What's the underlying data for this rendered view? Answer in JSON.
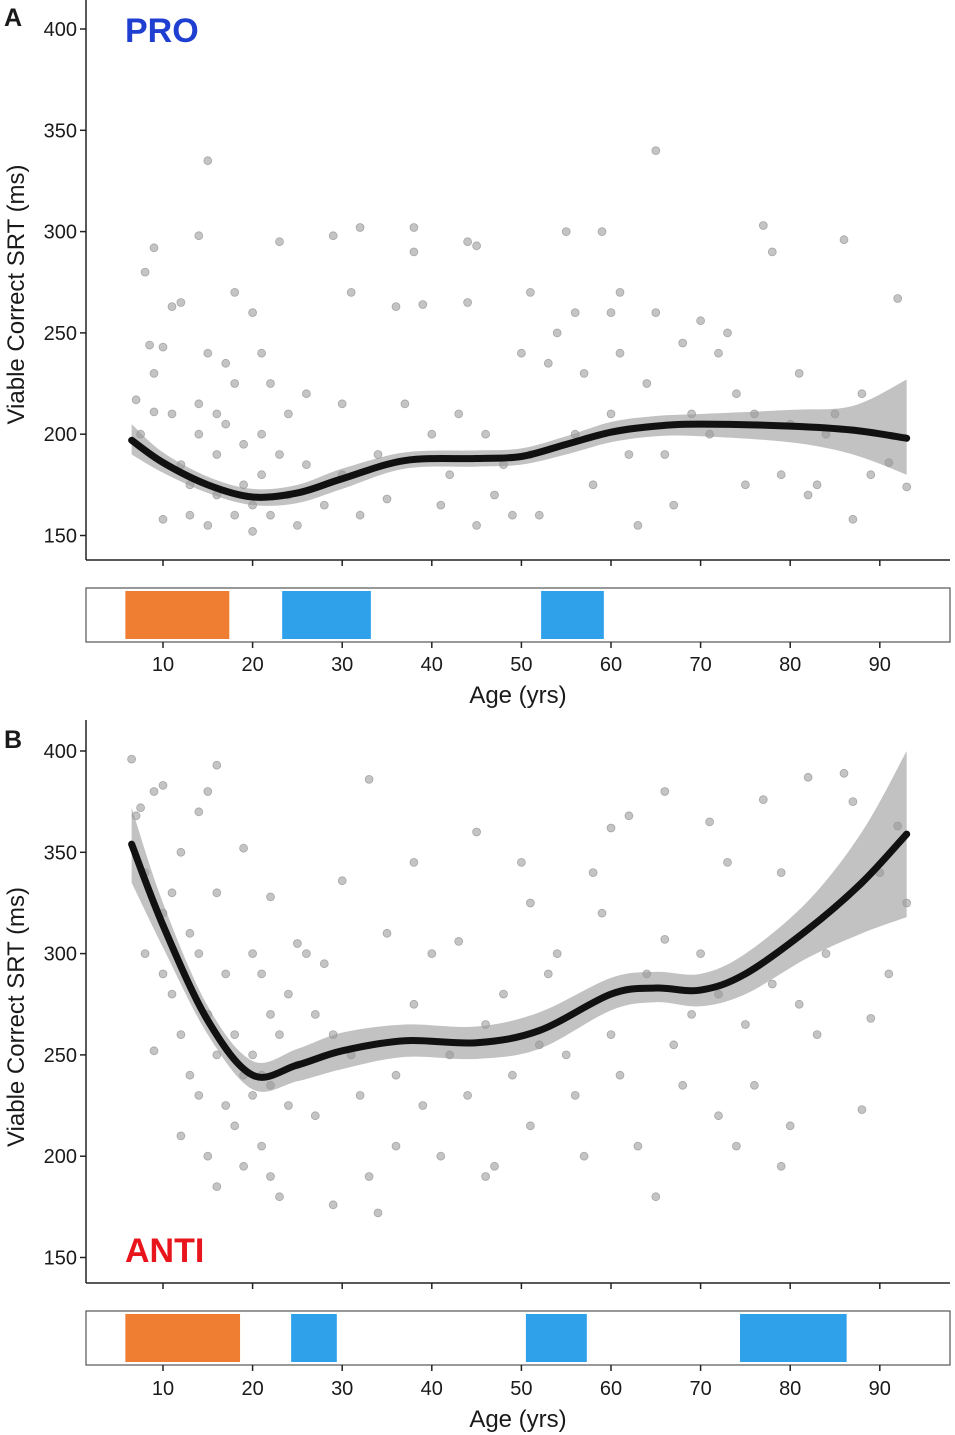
{
  "chart_data": [
    {
      "panel_label": "A",
      "type": "scatter",
      "title": "PRO",
      "title_color": "#1f3fd1",
      "xlabel": "Age (yrs)",
      "ylabel": "Viable Correct SRT (ms)",
      "xlim": [
        0,
        95
      ],
      "ylim": [
        140,
        405
      ],
      "xticks": [
        10,
        20,
        30,
        40,
        50,
        60,
        70,
        80,
        90
      ],
      "yticks": [
        150,
        200,
        250,
        300,
        350,
        400
      ],
      "grid": false,
      "points": [
        [
          7,
          217
        ],
        [
          7.5,
          200
        ],
        [
          8,
          280
        ],
        [
          8.5,
          244
        ],
        [
          9,
          292
        ],
        [
          9,
          230
        ],
        [
          9,
          211
        ],
        [
          10,
          243
        ],
        [
          10,
          158
        ],
        [
          11,
          263
        ],
        [
          11,
          210
        ],
        [
          12,
          265
        ],
        [
          12,
          185
        ],
        [
          13,
          175
        ],
        [
          13,
          160
        ],
        [
          14,
          215
        ],
        [
          14,
          200
        ],
        [
          14,
          298
        ],
        [
          15,
          335
        ],
        [
          15,
          155
        ],
        [
          15,
          240
        ],
        [
          16,
          210
        ],
        [
          16,
          190
        ],
        [
          16,
          170
        ],
        [
          17,
          235
        ],
        [
          17,
          205
        ],
        [
          18,
          270
        ],
        [
          18,
          160
        ],
        [
          18,
          225
        ],
        [
          19,
          195
        ],
        [
          19,
          175
        ],
        [
          20,
          260
        ],
        [
          20,
          165
        ],
        [
          20,
          152
        ],
        [
          21,
          240
        ],
        [
          21,
          200
        ],
        [
          21,
          180
        ],
        [
          22,
          225
        ],
        [
          22,
          160
        ],
        [
          23,
          295
        ],
        [
          23,
          190
        ],
        [
          24,
          210
        ],
        [
          24,
          170
        ],
        [
          25,
          155
        ],
        [
          26,
          220
        ],
        [
          26,
          185
        ],
        [
          28,
          165
        ],
        [
          29,
          298
        ],
        [
          30,
          215
        ],
        [
          30,
          180
        ],
        [
          31,
          270
        ],
        [
          32,
          302
        ],
        [
          32,
          160
        ],
        [
          34,
          190
        ],
        [
          35,
          168
        ],
        [
          36,
          263
        ],
        [
          37,
          215
        ],
        [
          38,
          290
        ],
        [
          38,
          302
        ],
        [
          39,
          264
        ],
        [
          40,
          200
        ],
        [
          41,
          165
        ],
        [
          42,
          180
        ],
        [
          43,
          210
        ],
        [
          44,
          295
        ],
        [
          44,
          265
        ],
        [
          45,
          155
        ],
        [
          45,
          293
        ],
        [
          46,
          200
        ],
        [
          47,
          170
        ],
        [
          48,
          185
        ],
        [
          49,
          160
        ],
        [
          50,
          240
        ],
        [
          51,
          270
        ],
        [
          51,
          190
        ],
        [
          52,
          160
        ],
        [
          53,
          235
        ],
        [
          54,
          250
        ],
        [
          55,
          300
        ],
        [
          56,
          200
        ],
        [
          56,
          260
        ],
        [
          57,
          230
        ],
        [
          58,
          175
        ],
        [
          59,
          300
        ],
        [
          60,
          210
        ],
        [
          60,
          260
        ],
        [
          61,
          240
        ],
        [
          61,
          270
        ],
        [
          62,
          190
        ],
        [
          63,
          155
        ],
        [
          64,
          225
        ],
        [
          65,
          260
        ],
        [
          65,
          340
        ],
        [
          66,
          190
        ],
        [
          67,
          165
        ],
        [
          68,
          245
        ],
        [
          69,
          210
        ],
        [
          70,
          256
        ],
        [
          71,
          200
        ],
        [
          72,
          240
        ],
        [
          73,
          250
        ],
        [
          74,
          220
        ],
        [
          75,
          175
        ],
        [
          76,
          210
        ],
        [
          77,
          303
        ],
        [
          78,
          290
        ],
        [
          79,
          180
        ],
        [
          80,
          205
        ],
        [
          81,
          230
        ],
        [
          82,
          170
        ],
        [
          83,
          175
        ],
        [
          84,
          200
        ],
        [
          85,
          210
        ],
        [
          86,
          296
        ],
        [
          87,
          158
        ],
        [
          88,
          220
        ],
        [
          89,
          180
        ],
        [
          91,
          186
        ],
        [
          92,
          267
        ],
        [
          93,
          174
        ]
      ],
      "smooth_fit": {
        "x": [
          6.5,
          10,
          15,
          20,
          25,
          30,
          37,
          45,
          50,
          55,
          60,
          65,
          70,
          80,
          87,
          93
        ],
        "y": [
          197,
          186,
          175,
          169,
          171,
          178,
          187,
          188,
          189,
          195,
          201,
          204,
          205,
          204,
          202,
          198
        ],
        "lower": [
          190,
          181,
          171,
          165,
          166,
          173,
          183,
          184,
          185,
          190,
          196,
          199,
          199,
          196,
          190,
          180
        ],
        "upper": [
          205,
          191,
          179,
          173,
          175,
          183,
          191,
          192,
          193,
          199,
          206,
          209,
          210,
          212,
          214,
          227
        ]
      },
      "age_bands": [
        {
          "from": 5.8,
          "to": 17.4,
          "color": "#ef7d32"
        },
        {
          "from": 23.3,
          "to": 33.2,
          "color": "#2ea1ea"
        },
        {
          "from": 52.2,
          "to": 59.2,
          "color": "#2ea1ea"
        }
      ]
    },
    {
      "panel_label": "B",
      "type": "scatter",
      "title": "ANTI",
      "title_color": "#e8161c",
      "xlabel": "Age (yrs)",
      "ylabel": "Viable Correct SRT (ms)",
      "xlim": [
        0,
        95
      ],
      "ylim": [
        140,
        405
      ],
      "xticks": [
        10,
        20,
        30,
        40,
        50,
        60,
        70,
        80,
        90
      ],
      "yticks": [
        150,
        200,
        250,
        300,
        350,
        400
      ],
      "grid": false,
      "points": [
        [
          6.5,
          396
        ],
        [
          7,
          368
        ],
        [
          7.5,
          372
        ],
        [
          8,
          300
        ],
        [
          8,
          340
        ],
        [
          9,
          380
        ],
        [
          9,
          252
        ],
        [
          10,
          383
        ],
        [
          10,
          320
        ],
        [
          10,
          290
        ],
        [
          11,
          330
        ],
        [
          11,
          280
        ],
        [
          12,
          350
        ],
        [
          12,
          260
        ],
        [
          12,
          210
        ],
        [
          13,
          310
        ],
        [
          13,
          240
        ],
        [
          14,
          370
        ],
        [
          14,
          300
        ],
        [
          14,
          230
        ],
        [
          15,
          380
        ],
        [
          15,
          270
        ],
        [
          15,
          200
        ],
        [
          16,
          393
        ],
        [
          16,
          330
        ],
        [
          16,
          250
        ],
        [
          16,
          185
        ],
        [
          17,
          290
        ],
        [
          17,
          225
        ],
        [
          18,
          260
        ],
        [
          18,
          215
        ],
        [
          19,
          352
        ],
        [
          19,
          240
        ],
        [
          19,
          195
        ],
        [
          20,
          300
        ],
        [
          20,
          250
        ],
        [
          20,
          230
        ],
        [
          21,
          290
        ],
        [
          21,
          240
        ],
        [
          21,
          205
        ],
        [
          22,
          328
        ],
        [
          22,
          270
        ],
        [
          22,
          235
        ],
        [
          22,
          190
        ],
        [
          23,
          260
        ],
        [
          23,
          180
        ],
        [
          24,
          280
        ],
        [
          24,
          225
        ],
        [
          25,
          305
        ],
        [
          25,
          245
        ],
        [
          26,
          300
        ],
        [
          27,
          270
        ],
        [
          27,
          220
        ],
        [
          28,
          295
        ],
        [
          29,
          260
        ],
        [
          29,
          176
        ],
        [
          30,
          336
        ],
        [
          31,
          250
        ],
        [
          32,
          230
        ],
        [
          33,
          386
        ],
        [
          33,
          190
        ],
        [
          34,
          172
        ],
        [
          35,
          310
        ],
        [
          36,
          240
        ],
        [
          36,
          205
        ],
        [
          38,
          345
        ],
        [
          38,
          275
        ],
        [
          39,
          225
        ],
        [
          40,
          300
        ],
        [
          41,
          200
        ],
        [
          42,
          250
        ],
        [
          43,
          306
        ],
        [
          44,
          230
        ],
        [
          45,
          360
        ],
        [
          46,
          265
        ],
        [
          46,
          190
        ],
        [
          47,
          195
        ],
        [
          48,
          280
        ],
        [
          49,
          240
        ],
        [
          50,
          345
        ],
        [
          51,
          325
        ],
        [
          51,
          215
        ],
        [
          52,
          255
        ],
        [
          53,
          290
        ],
        [
          54,
          300
        ],
        [
          55,
          250
        ],
        [
          56,
          230
        ],
        [
          57,
          200
        ],
        [
          58,
          340
        ],
        [
          59,
          320
        ],
        [
          60,
          260
        ],
        [
          60,
          362
        ],
        [
          61,
          240
        ],
        [
          62,
          368
        ],
        [
          63,
          205
        ],
        [
          64,
          290
        ],
        [
          65,
          180
        ],
        [
          66,
          380
        ],
        [
          66,
          307
        ],
        [
          67,
          255
        ],
        [
          68,
          235
        ],
        [
          69,
          270
        ],
        [
          70,
          300
        ],
        [
          71,
          365
        ],
        [
          72,
          280
        ],
        [
          72,
          220
        ],
        [
          73,
          345
        ],
        [
          74,
          205
        ],
        [
          75,
          265
        ],
        [
          76,
          235
        ],
        [
          77,
          376
        ],
        [
          78,
          285
        ],
        [
          79,
          195
        ],
        [
          79,
          340
        ],
        [
          80,
          215
        ],
        [
          81,
          275
        ],
        [
          82,
          387
        ],
        [
          83,
          260
        ],
        [
          84,
          300
        ],
        [
          86,
          389
        ],
        [
          87,
          375
        ],
        [
          88,
          223
        ],
        [
          89,
          268
        ],
        [
          90,
          340
        ],
        [
          91,
          290
        ],
        [
          92,
          363
        ],
        [
          93,
          325
        ]
      ],
      "smooth_fit": {
        "x": [
          6.5,
          10,
          15,
          20,
          25,
          30,
          37,
          45,
          52,
          60,
          65,
          70,
          75,
          82,
          88,
          93
        ],
        "y": [
          354,
          314,
          267,
          240,
          245,
          252,
          257,
          256,
          262,
          280,
          283,
          282,
          290,
          312,
          335,
          359
        ],
        "lower": [
          335,
          303,
          260,
          233,
          237,
          243,
          249,
          248,
          253,
          272,
          276,
          274,
          280,
          298,
          310,
          318
        ],
        "upper": [
          372,
          325,
          274,
          247,
          253,
          261,
          265,
          264,
          271,
          288,
          291,
          290,
          300,
          326,
          360,
          400
        ]
      },
      "age_bands": [
        {
          "from": 5.8,
          "to": 18.6,
          "color": "#ef7d32"
        },
        {
          "from": 24.3,
          "to": 29.4,
          "color": "#2ea1ea"
        },
        {
          "from": 50.5,
          "to": 57.3,
          "color": "#2ea1ea"
        },
        {
          "from": 74.4,
          "to": 86.3,
          "color": "#2ea1ea"
        }
      ]
    }
  ]
}
